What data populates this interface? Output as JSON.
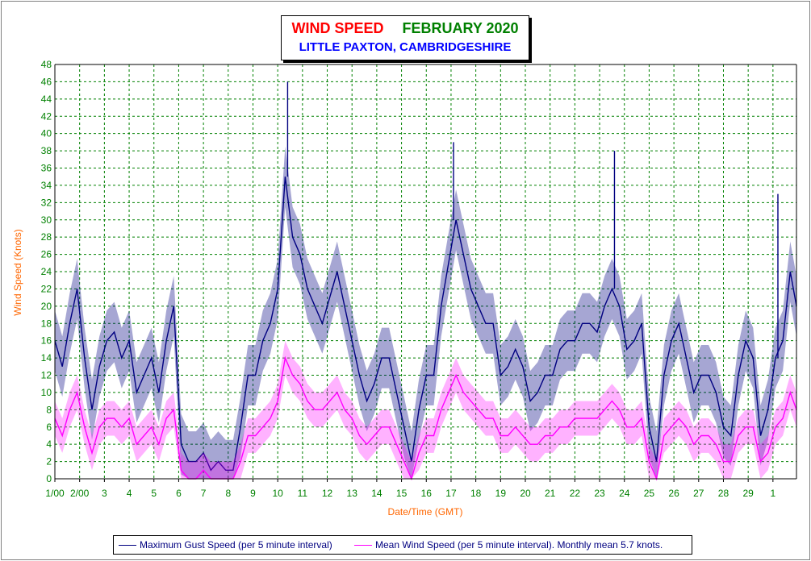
{
  "title": {
    "main": "WIND SPEED",
    "period": "FEBRUARY 2020",
    "location": "LITTLE PAXTON, CAMBRIDGESHIRE"
  },
  "chart_data": {
    "type": "line",
    "xlabel": "Date/Time (GMT)",
    "ylabel": "Wind Speed (Knots)",
    "ylim": [
      0,
      48
    ],
    "yticks": [
      0,
      2,
      4,
      6,
      8,
      10,
      12,
      14,
      16,
      18,
      20,
      22,
      24,
      26,
      28,
      30,
      32,
      34,
      36,
      38,
      40,
      42,
      44,
      46,
      48
    ],
    "xlim_days": [
      0,
      29.95
    ],
    "x_ticks": [
      "1/00",
      "2/00",
      "3",
      "4",
      "5",
      "6",
      "7",
      "8",
      "9",
      "10",
      "11",
      "12",
      "13",
      "14",
      "15",
      "16",
      "17",
      "18",
      "19",
      "20",
      "21",
      "22",
      "23",
      "24",
      "25",
      "26",
      "27",
      "28",
      "29",
      "1"
    ],
    "grid": true,
    "colors": {
      "gust": "#000080",
      "mean": "#ff00ff",
      "axis_labels": "#008000",
      "axis_titles": "#ff6600",
      "grid": "#008000"
    },
    "series": [
      {
        "name": "Maximum Gust Speed (per 5 minute interval)",
        "color": "#000080",
        "x_day": [
          0,
          0.3,
          0.6,
          0.9,
          1.2,
          1.5,
          1.8,
          2.1,
          2.4,
          2.7,
          3.0,
          3.3,
          3.6,
          3.9,
          4.2,
          4.5,
          4.8,
          5.1,
          5.4,
          5.7,
          6.0,
          6.3,
          6.6,
          6.9,
          7.2,
          7.5,
          7.8,
          8.1,
          8.4,
          8.7,
          9.0,
          9.3,
          9.6,
          9.9,
          10.2,
          10.5,
          10.8,
          11.1,
          11.4,
          11.7,
          12.0,
          12.3,
          12.6,
          12.9,
          13.2,
          13.5,
          13.8,
          14.1,
          14.4,
          14.7,
          15.0,
          15.3,
          15.6,
          15.9,
          16.2,
          16.5,
          16.8,
          17.1,
          17.4,
          17.7,
          18.0,
          18.3,
          18.6,
          18.9,
          19.2,
          19.5,
          19.8,
          20.1,
          20.4,
          20.7,
          21.0,
          21.3,
          21.6,
          21.9,
          22.2,
          22.5,
          22.8,
          23.1,
          23.4,
          23.7,
          24.0,
          24.3,
          24.6,
          24.9,
          25.2,
          25.5,
          25.8,
          26.1,
          26.4,
          26.7,
          27.0,
          27.3,
          27.6,
          27.9,
          28.2,
          28.5,
          28.8,
          29.1,
          29.4,
          29.7,
          29.95
        ],
        "values": [
          16,
          13,
          18,
          22,
          14,
          8,
          13,
          16,
          17,
          14,
          16,
          10,
          12,
          14,
          10,
          16,
          20,
          4,
          2,
          2,
          3,
          1,
          2,
          1,
          1,
          6,
          12,
          12,
          16,
          18,
          22,
          35,
          28,
          26,
          22,
          20,
          18,
          21,
          24,
          20,
          16,
          12,
          9,
          11,
          14,
          14,
          10,
          6,
          2,
          8,
          12,
          12,
          20,
          25,
          30,
          26,
          22,
          20,
          18,
          18,
          12,
          13,
          15,
          13,
          9,
          10,
          12,
          12,
          15,
          16,
          16,
          18,
          18,
          17,
          20,
          22,
          20,
          15,
          16,
          18,
          6,
          2,
          12,
          16,
          18,
          14,
          10,
          12,
          12,
          10,
          6,
          5,
          12,
          16,
          14,
          5,
          8,
          14,
          16,
          24,
          20
        ],
        "peaks": [
          {
            "x_day": 9.4,
            "value": 46
          },
          {
            "x_day": 16.1,
            "value": 39
          },
          {
            "x_day": 22.6,
            "value": 38
          },
          {
            "x_day": 29.2,
            "value": 33
          }
        ]
      },
      {
        "name": "Mean Wind Speed (per 5 minute interval). Monthly mean 5.7 knots.",
        "color": "#ff00ff",
        "x_day": [
          0,
          0.3,
          0.6,
          0.9,
          1.2,
          1.5,
          1.8,
          2.1,
          2.4,
          2.7,
          3.0,
          3.3,
          3.6,
          3.9,
          4.2,
          4.5,
          4.8,
          5.1,
          5.4,
          5.7,
          6.0,
          6.3,
          6.6,
          6.9,
          7.2,
          7.5,
          7.8,
          8.1,
          8.4,
          8.7,
          9.0,
          9.3,
          9.6,
          9.9,
          10.2,
          10.5,
          10.8,
          11.1,
          11.4,
          11.7,
          12.0,
          12.3,
          12.6,
          12.9,
          13.2,
          13.5,
          13.8,
          14.1,
          14.4,
          14.7,
          15.0,
          15.3,
          15.6,
          15.9,
          16.2,
          16.5,
          16.8,
          17.1,
          17.4,
          17.7,
          18.0,
          18.3,
          18.6,
          18.9,
          19.2,
          19.5,
          19.8,
          20.1,
          20.4,
          20.7,
          21.0,
          21.3,
          21.6,
          21.9,
          22.2,
          22.5,
          22.8,
          23.1,
          23.4,
          23.7,
          24.0,
          24.3,
          24.6,
          24.9,
          25.2,
          25.5,
          25.8,
          26.1,
          26.4,
          26.7,
          27.0,
          27.3,
          27.6,
          27.9,
          28.2,
          28.5,
          28.8,
          29.1,
          29.4,
          29.7,
          29.95
        ],
        "values": [
          7,
          5,
          8,
          10,
          6,
          3,
          6,
          7,
          7,
          6,
          7,
          4,
          5,
          6,
          4,
          7,
          8,
          1,
          0,
          0,
          1,
          0,
          0,
          0,
          0,
          2,
          5,
          5,
          6,
          7,
          9,
          14,
          12,
          11,
          9,
          8,
          8,
          9,
          10,
          8,
          7,
          5,
          4,
          5,
          6,
          6,
          4,
          2,
          0,
          3,
          5,
          5,
          8,
          10,
          12,
          10,
          9,
          8,
          7,
          7,
          5,
          5,
          6,
          5,
          4,
          4,
          5,
          5,
          6,
          6,
          7,
          7,
          7,
          7,
          8,
          9,
          8,
          6,
          6,
          7,
          2,
          0,
          5,
          6,
          7,
          6,
          4,
          5,
          5,
          4,
          2,
          2,
          5,
          6,
          6,
          2,
          3,
          6,
          7,
          10,
          8
        ]
      }
    ]
  },
  "legend": {
    "gust_label": "Maximum Gust Speed (per 5 minute interval)",
    "mean_label": "Mean Wind Speed (per 5 minute interval). Monthly mean 5.7 knots."
  }
}
